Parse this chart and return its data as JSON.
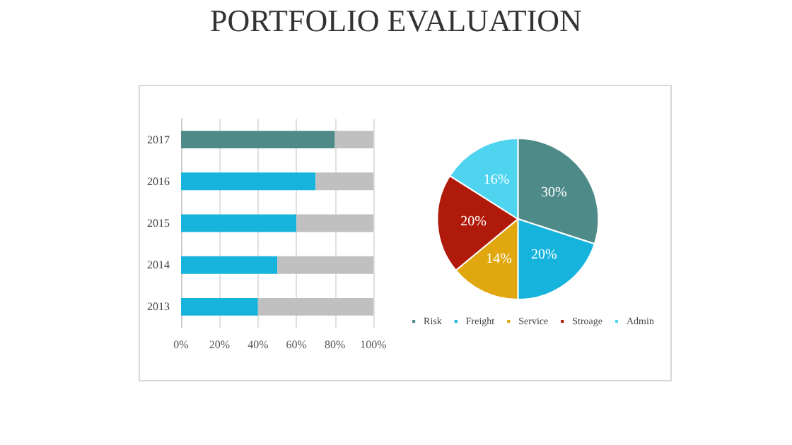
{
  "chart_data": [
    {
      "type": "bar",
      "title": "PORTFOLIO EVALUATION",
      "orientation": "horizontal",
      "stacked": true,
      "categories": [
        "2017",
        "2016",
        "2015",
        "2014",
        "2013"
      ],
      "series": [
        {
          "colors": [
            "#4e8a88",
            "#16b4dc",
            "#16b4dc",
            "#16b4dc",
            "#16b4dc"
          ],
          "values": [
            80,
            70,
            60,
            50,
            40
          ]
        },
        {
          "color": "#c0c0c0",
          "values": [
            20,
            30,
            40,
            50,
            60
          ]
        }
      ],
      "xlim": [
        0,
        100
      ],
      "xticks": [
        {
          "value": 0,
          "label": "0%"
        },
        {
          "value": 20,
          "label": "20%"
        },
        {
          "value": 40,
          "label": "40%"
        },
        {
          "value": 60,
          "label": "60%"
        },
        {
          "value": 80,
          "label": "80%"
        },
        {
          "value": 100,
          "label": "100%"
        }
      ],
      "grid": "x"
    },
    {
      "type": "pie",
      "categories": [
        "Risk",
        "Freight",
        "Service",
        "Stroage",
        "Admin"
      ],
      "values": [
        30,
        20,
        14,
        20,
        16
      ],
      "colors": [
        "#4e8a88",
        "#16b4dc",
        "#e0a70e",
        "#b01a0a",
        "#4fd4f0"
      ],
      "value_labels": [
        "30%",
        "20%",
        "14%",
        "20%",
        "16%"
      ],
      "legend": "bottom"
    }
  ]
}
